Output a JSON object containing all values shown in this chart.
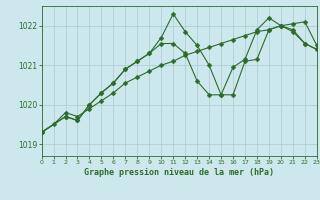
{
  "background_color": "#cde8ec",
  "grid_color": "#aecfd4",
  "line_color": "#2d6b2d",
  "title": "Graphe pression niveau de la mer (hPa)",
  "xlim": [
    0,
    23
  ],
  "ylim": [
    1018.7,
    1022.5
  ],
  "yticks": [
    1019,
    1020,
    1021,
    1022
  ],
  "xticks": [
    0,
    1,
    2,
    3,
    4,
    5,
    6,
    7,
    8,
    9,
    10,
    11,
    12,
    13,
    14,
    15,
    16,
    17,
    18,
    19,
    20,
    21,
    22,
    23
  ],
  "series1_x": [
    0,
    1,
    2,
    3,
    4,
    5,
    6,
    7,
    8,
    9,
    10,
    11,
    12,
    13,
    14,
    15,
    16,
    17,
    18,
    19,
    20,
    21,
    22,
    23
  ],
  "series1_y": [
    1019.3,
    1019.5,
    1019.8,
    1019.7,
    1019.9,
    1020.1,
    1020.3,
    1020.55,
    1020.7,
    1020.85,
    1021.0,
    1021.1,
    1021.25,
    1021.35,
    1021.45,
    1021.55,
    1021.65,
    1021.75,
    1021.85,
    1021.9,
    1022.0,
    1022.05,
    1022.1,
    1021.5
  ],
  "series2_x": [
    0,
    2,
    3,
    4,
    5,
    6,
    7,
    8,
    9,
    10,
    11,
    12,
    13,
    14,
    15,
    16,
    17,
    18,
    19,
    20,
    21,
    22,
    23
  ],
  "series2_y": [
    1019.3,
    1019.7,
    1019.6,
    1020.0,
    1020.3,
    1020.55,
    1020.9,
    1021.1,
    1021.3,
    1021.55,
    1021.55,
    1021.3,
    1020.6,
    1020.25,
    1020.25,
    1020.95,
    1021.15,
    1021.9,
    1022.2,
    1022.0,
    1021.85,
    1021.55,
    1021.4
  ],
  "series3_x": [
    0,
    2,
    3,
    4,
    5,
    6,
    7,
    8,
    9,
    10,
    11,
    12,
    13,
    14,
    15,
    16,
    17,
    18,
    19,
    20,
    21,
    22,
    23
  ],
  "series3_y": [
    1019.3,
    1019.7,
    1019.6,
    1020.0,
    1020.3,
    1020.55,
    1020.9,
    1021.1,
    1021.3,
    1021.7,
    1022.3,
    1021.85,
    1021.5,
    1021.0,
    1020.25,
    1020.25,
    1021.1,
    1021.15,
    1021.9,
    1022.0,
    1021.9,
    1021.55,
    1021.4
  ]
}
